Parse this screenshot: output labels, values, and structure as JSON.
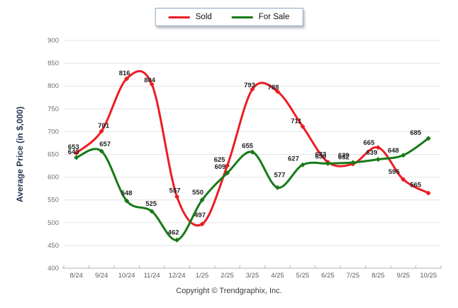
{
  "legend": {
    "items": [
      {
        "label": "Sold",
        "color": "#ed1c24"
      },
      {
        "label": "For Sale",
        "color": "#177a17"
      }
    ]
  },
  "chart_data": {
    "type": "line",
    "title": "",
    "ylabel": "Average Price (in $,000)",
    "xlabel": "",
    "ylim": [
      400,
      900
    ],
    "yticks": [
      400,
      450,
      500,
      550,
      600,
      650,
      700,
      750,
      800,
      850,
      900
    ],
    "grid": "horizontal",
    "legend_position": "top",
    "line_style": "smooth",
    "categories": [
      "8/24",
      "9/24",
      "10/24",
      "11/24",
      "12/24",
      "1/25",
      "2/25",
      "3/25",
      "4/25",
      "5/25",
      "6/25",
      "7/25",
      "8/25",
      "9/25",
      "10/25"
    ],
    "series": [
      {
        "name": "Sold",
        "color": "#ed1c24",
        "values": [
          653,
          701,
          816,
          804,
          557,
          497,
          625,
          793,
          788,
          711,
          633,
          629,
          665,
          595,
          565
        ]
      },
      {
        "name": "For Sale",
        "color": "#177a17",
        "values": [
          643,
          657,
          548,
          525,
          462,
          550,
          609,
          655,
          577,
          627,
          630,
          632,
          639,
          648,
          685
        ]
      }
    ]
  },
  "footer": {
    "copyright": "Copyright © Trendgraphix, Inc."
  }
}
